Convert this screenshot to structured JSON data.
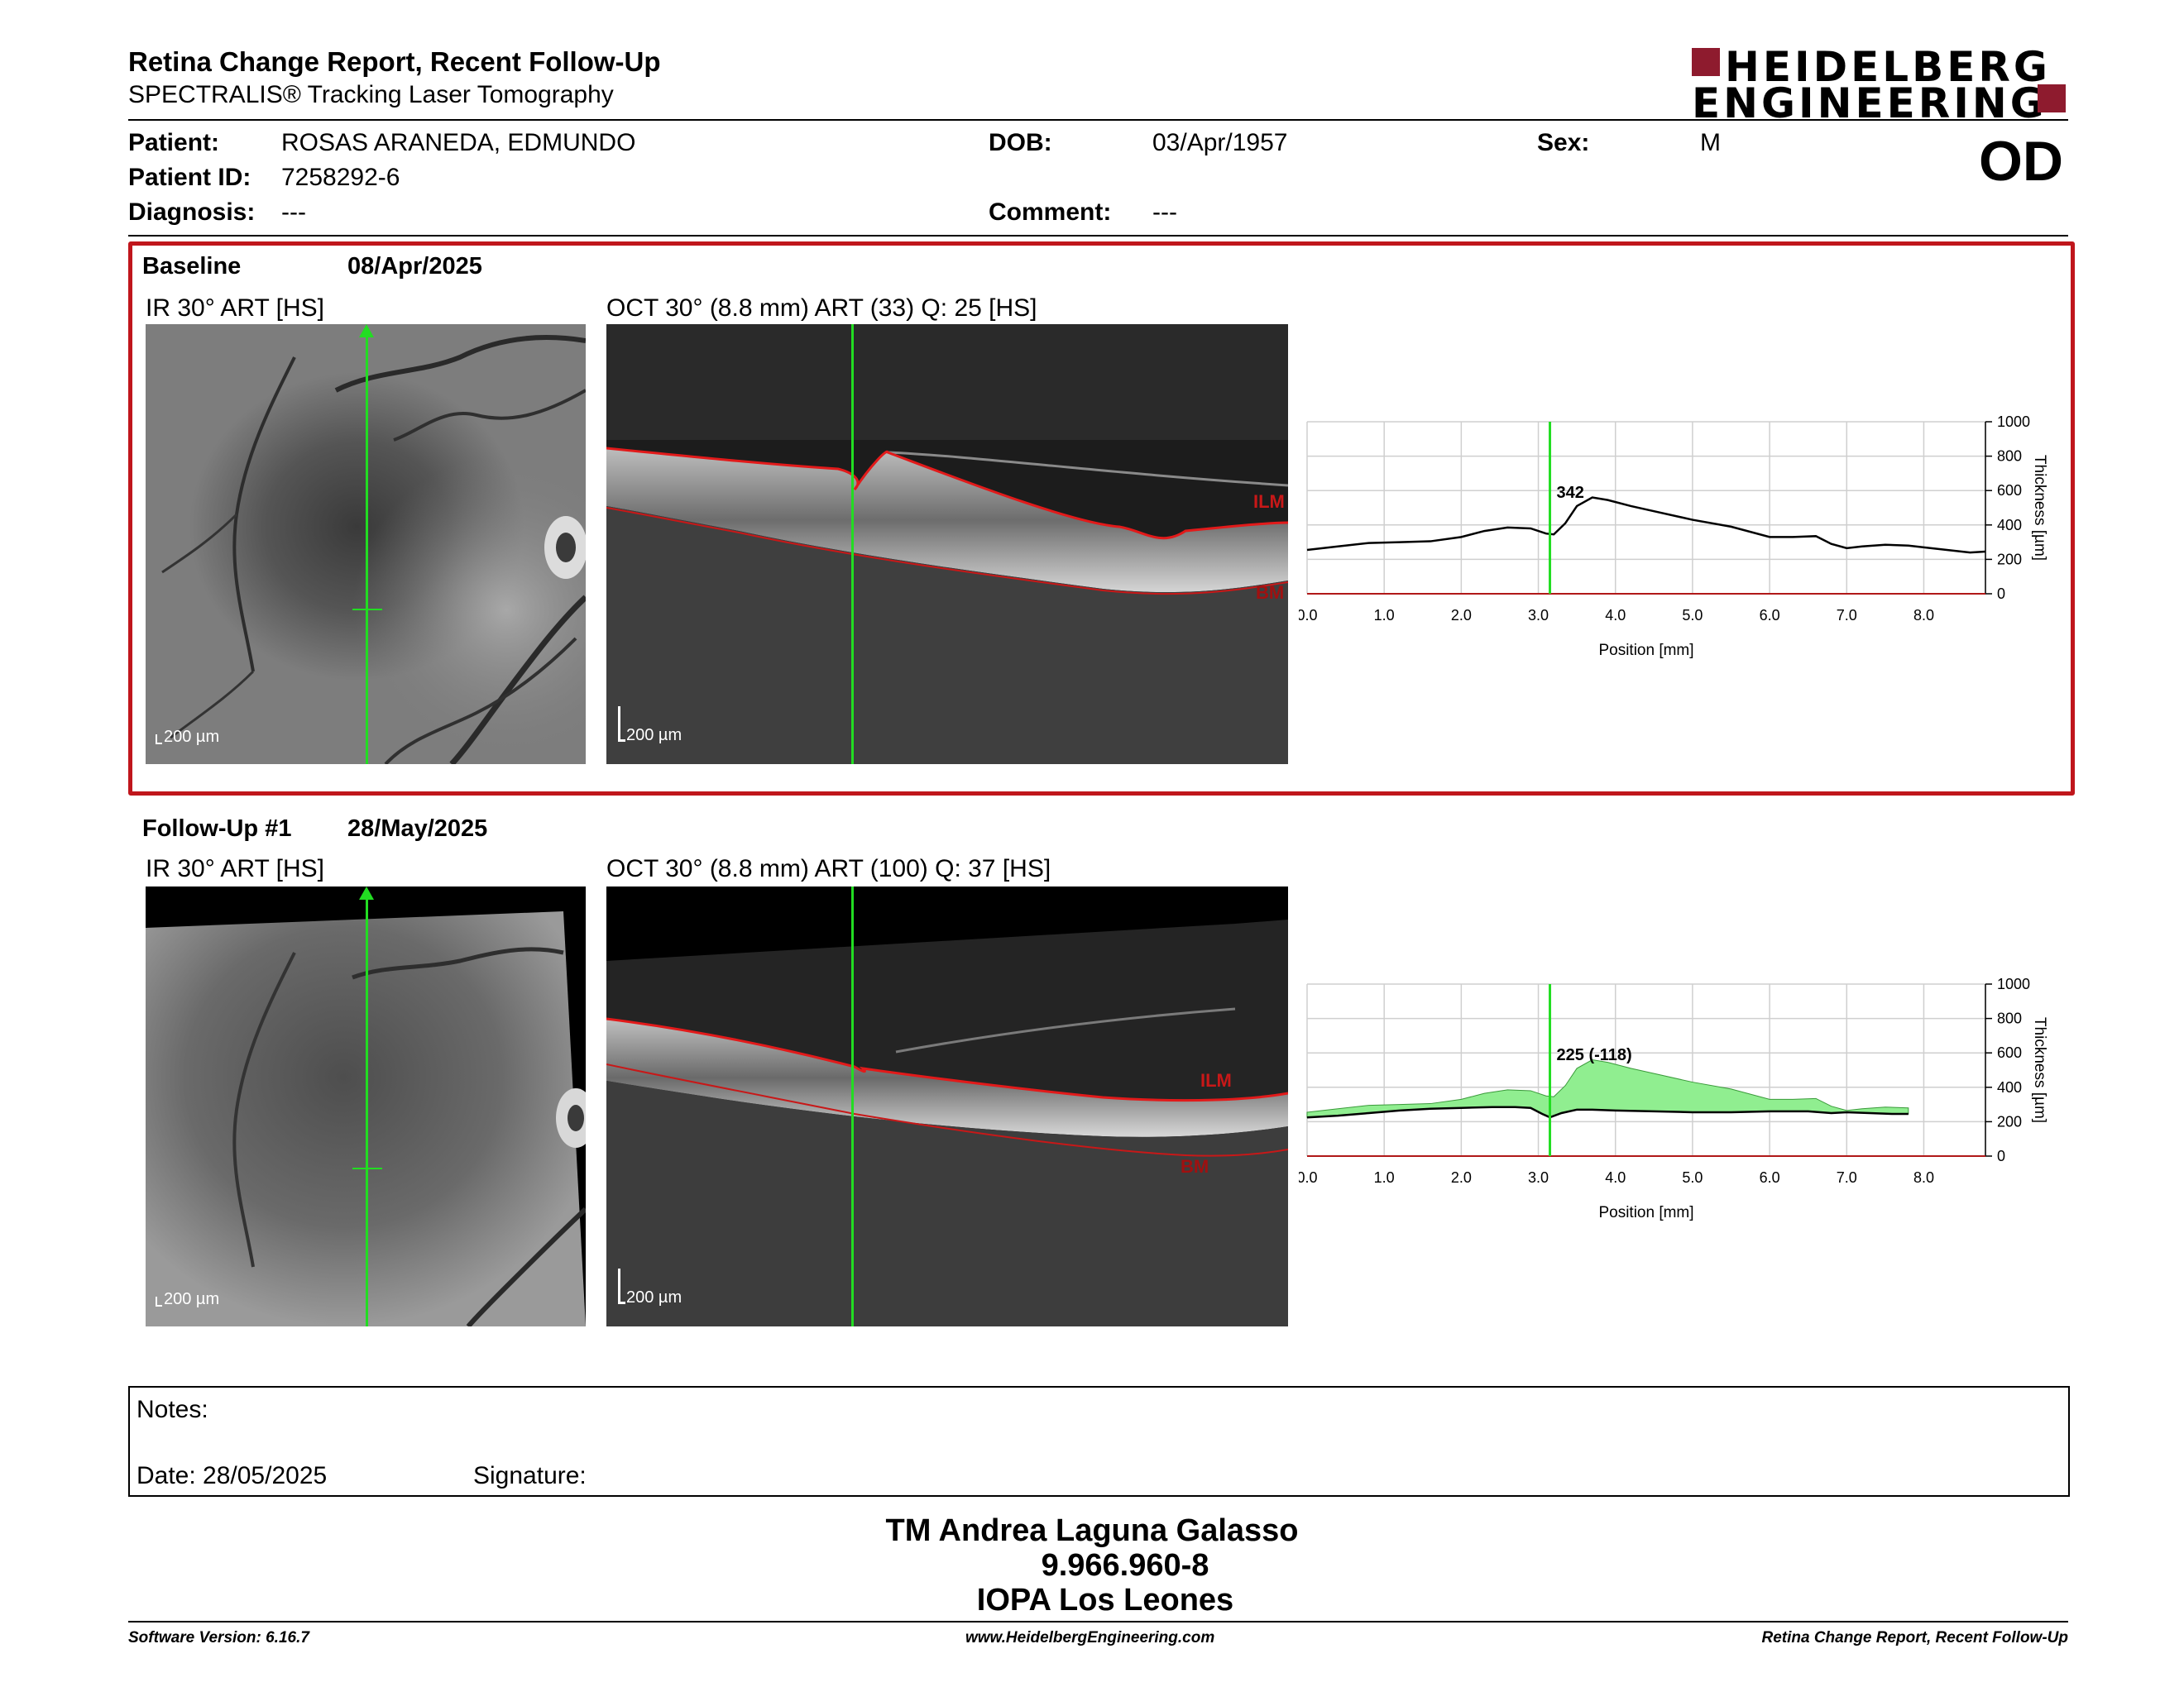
{
  "report": {
    "title": "Retina Change Report, Recent Follow-Up",
    "subtitle": "SPECTRALIS® Tracking Laser Tomography",
    "eye": "OD"
  },
  "logo": {
    "line1": "HEIDELBERG",
    "line2": "ENGINEERING",
    "brand_color": "#8e1b2e"
  },
  "patient": {
    "name_label": "Patient:",
    "name": "ROSAS ARANEDA, EDMUNDO",
    "id_label": "Patient ID:",
    "id": "7258292-6",
    "diagnosis_label": "Diagnosis:",
    "diagnosis": "---",
    "dob_label": "DOB:",
    "dob": "03/Apr/1957",
    "comment_label": "Comment:",
    "comment": "---",
    "sex_label": "Sex:",
    "sex": "M"
  },
  "baseline": {
    "label": "Baseline",
    "date": "08/Apr/2025",
    "ir_title": "IR 30° ART [HS]",
    "oct_title": "OCT 30° (8.8 mm) ART (33) Q: 25 [HS]",
    "ir_scale": "200 µm",
    "oct_scale": "200 µm",
    "ilm_label": "ILM",
    "bm_label": "BM"
  },
  "followup": {
    "label": "Follow-Up #1",
    "date": "28/May/2025",
    "ir_title": "IR 30° ART [HS]",
    "oct_title": "OCT 30° (8.8 mm) ART (100) Q: 37 [HS]",
    "ir_scale": "200 µm",
    "oct_scale": "200 µm",
    "ilm_label": "ILM",
    "bm_label": "BM"
  },
  "chart_data": [
    {
      "type": "line",
      "x_label": "Position [mm]",
      "y_label": "Thickness [µm]",
      "xlim": [
        0,
        8.8
      ],
      "ylim": [
        0,
        1000
      ],
      "x_ticks": [
        "0.0",
        "1.0",
        "2.0",
        "3.0",
        "4.0",
        "5.0",
        "6.0",
        "7.0",
        "8.0"
      ],
      "y_ticks": [
        "0",
        "200",
        "400",
        "600",
        "800",
        "1000"
      ],
      "marker_x": 3.15,
      "marker_label": "342",
      "series": [
        {
          "x": [
            0.0,
            0.4,
            0.8,
            1.2,
            1.6,
            2.0,
            2.3,
            2.6,
            2.9,
            3.1,
            3.2,
            3.35,
            3.5,
            3.7,
            3.9,
            4.2,
            4.5,
            5.0,
            5.5,
            6.0,
            6.3,
            6.6,
            6.8,
            7.0,
            7.2,
            7.5,
            7.8,
            8.0,
            8.3,
            8.6,
            8.8
          ],
          "y": [
            255,
            275,
            295,
            300,
            305,
            330,
            365,
            385,
            380,
            350,
            345,
            410,
            510,
            560,
            545,
            510,
            480,
            430,
            390,
            330,
            330,
            335,
            290,
            265,
            275,
            285,
            280,
            270,
            255,
            240,
            245
          ]
        }
      ]
    },
    {
      "type": "area",
      "x_label": "Position [mm]",
      "y_label": "Thickness [µm]",
      "xlim": [
        0,
        8.8
      ],
      "ylim": [
        0,
        1000
      ],
      "x_ticks": [
        "0.0",
        "1.0",
        "2.0",
        "3.0",
        "4.0",
        "5.0",
        "6.0",
        "7.0",
        "8.0"
      ],
      "y_ticks": [
        "0",
        "200",
        "400",
        "600",
        "800",
        "1000"
      ],
      "marker_x": 3.15,
      "marker_label": "225 (-118)",
      "fill_color": "#90ee90",
      "series": [
        {
          "x": [
            0.0,
            0.4,
            0.8,
            1.2,
            1.6,
            2.0,
            2.3,
            2.6,
            2.9,
            3.1,
            3.2,
            3.35,
            3.5,
            3.7,
            3.9,
            4.2,
            4.5,
            5.0,
            5.5,
            6.0,
            6.3,
            6.6,
            6.8,
            7.0,
            7.2,
            7.5,
            7.8
          ],
          "y": [
            255,
            275,
            295,
            300,
            305,
            330,
            365,
            385,
            380,
            350,
            345,
            410,
            510,
            560,
            545,
            510,
            480,
            430,
            390,
            330,
            330,
            335,
            290,
            265,
            275,
            285,
            280
          ]
        },
        {
          "x": [
            0.0,
            0.4,
            0.8,
            1.2,
            1.6,
            2.0,
            2.4,
            2.7,
            2.9,
            3.05,
            3.15,
            3.3,
            3.5,
            3.7,
            4.0,
            4.5,
            5.0,
            5.5,
            6.0,
            6.5,
            6.8,
            7.0,
            7.3,
            7.6,
            7.8
          ],
          "y": [
            225,
            235,
            250,
            265,
            275,
            280,
            285,
            285,
            280,
            245,
            225,
            250,
            270,
            270,
            265,
            260,
            255,
            255,
            260,
            260,
            250,
            255,
            250,
            245,
            245
          ]
        }
      ]
    }
  ],
  "notes": {
    "notes_label": "Notes:",
    "date_label": "Date: 28/05/2025",
    "signature_label": "Signature:"
  },
  "signer": {
    "name": "TM Andrea Laguna Galasso",
    "rut": "9.966.960-8",
    "org": "IOPA Los Leones"
  },
  "footer": {
    "software": "Software Version: 6.16.7",
    "website": "www.HeidelbergEngineering.com",
    "report_name": "Retina Change Report, Recent Follow-Up"
  }
}
